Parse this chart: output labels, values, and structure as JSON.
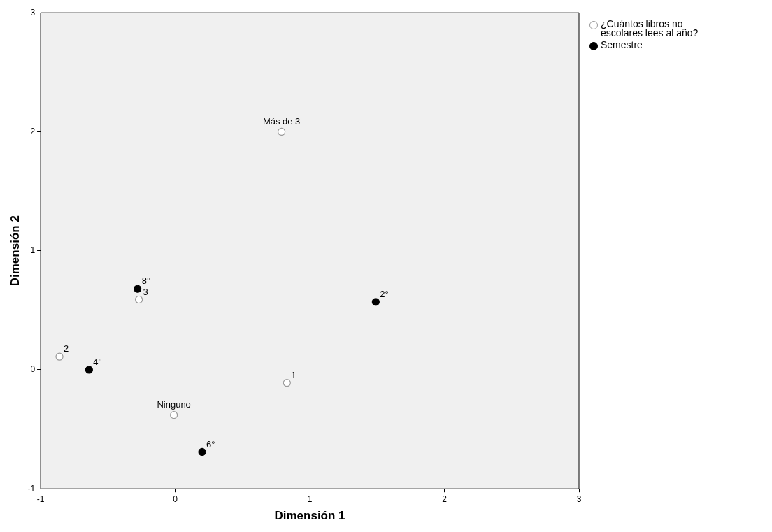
{
  "chart_data": {
    "type": "scatter",
    "xlabel": "Dimensión 1",
    "ylabel": "Dimensión 2",
    "xlim": [
      -1,
      3
    ],
    "ylim": [
      -1,
      3
    ],
    "xticks": [
      -1,
      0,
      1,
      2,
      3
    ],
    "yticks": [
      -1,
      0,
      1,
      2,
      3
    ],
    "grid": false,
    "legend": "top right",
    "marker": "circle",
    "series": [
      {
        "name": "¿Cuántos libros no escolares lees al año?",
        "color": "#ffffff",
        "x": [
          0.79,
          -0.27,
          -0.86,
          0.83,
          -0.01
        ],
        "values": [
          2.0,
          0.59,
          0.11,
          -0.11,
          -0.38
        ]
      },
      {
        "name": "Semestre",
        "color": "#000000",
        "x": [
          -0.28,
          1.49,
          -0.64,
          0.2
        ],
        "values": [
          0.68,
          0.57,
          0.0,
          -0.69
        ]
      }
    ],
    "annotations": [
      {
        "text": "Más de 3",
        "x": 0.79,
        "y": 2.0
      },
      {
        "text": "3",
        "x": -0.27,
        "y": 0.59
      },
      {
        "text": "2",
        "x": -0.86,
        "y": 0.11
      },
      {
        "text": "1",
        "x": 0.83,
        "y": -0.11
      },
      {
        "text": "Ninguno",
        "x": -0.01,
        "y": -0.38
      },
      {
        "text": "8°",
        "x": -0.28,
        "y": 0.68
      },
      {
        "text": "2°",
        "x": 1.49,
        "y": 0.57
      },
      {
        "text": "4°",
        "x": -0.64,
        "y": 0.0
      },
      {
        "text": "6°",
        "x": 0.2,
        "y": -0.69
      }
    ]
  }
}
